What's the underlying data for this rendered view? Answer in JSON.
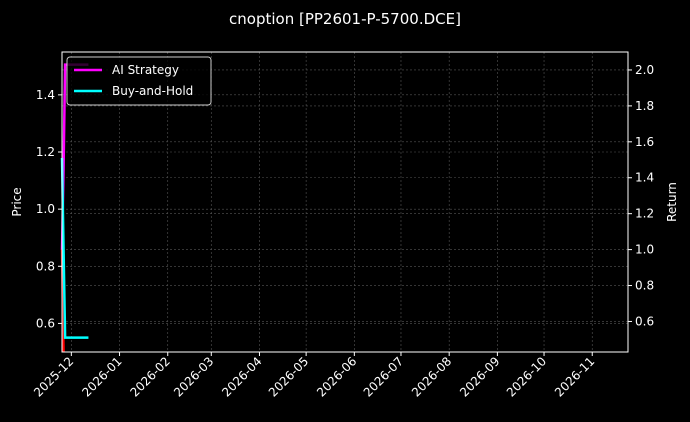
{
  "chart_data": {
    "type": "line",
    "title": "cnoption [PP2601-P-5700.DCE]",
    "ylabel_left": "Price",
    "ylabel_right": "Return",
    "xlim": [
      "2025-11-25",
      "2026-11-24"
    ],
    "ylim_left": [
      0.5,
      1.55
    ],
    "ylim_right": [
      0.43,
      2.1
    ],
    "x_ticks": [
      "2025-12",
      "2026-01",
      "2026-02",
      "2026-03",
      "2026-04",
      "2026-05",
      "2026-06",
      "2026-07",
      "2026-08",
      "2026-09",
      "2026-10",
      "2026-11"
    ],
    "y_ticks_left": [
      "0.6",
      "0.8",
      "1.0",
      "1.2",
      "1.4"
    ],
    "y_ticks_right": [
      "0.6",
      "0.8",
      "1.0",
      "1.2",
      "1.4",
      "1.6",
      "1.8",
      "2.0"
    ],
    "grid": true,
    "legend_position": "top-left",
    "price": {
      "color": "#ff0000",
      "x": [
        "2025-11-25",
        "2025-11-26"
      ],
      "y": [
        0.86,
        0.5
      ]
    },
    "series": [
      {
        "name": "AI Strategy",
        "axis": "right",
        "color": "#ff00ff",
        "x": [
          "2025-11-25",
          "2025-11-26",
          "2025-11-27",
          "2025-12-12"
        ],
        "y": [
          1.0,
          1.45,
          2.03,
          2.03
        ]
      },
      {
        "name": "Buy-and-Hold",
        "axis": "right",
        "color": "#00ffff",
        "x": [
          "2025-11-25",
          "2025-11-26",
          "2025-11-27",
          "2025-12-12"
        ],
        "y": [
          1.51,
          1.0,
          0.51,
          0.51
        ]
      }
    ]
  }
}
